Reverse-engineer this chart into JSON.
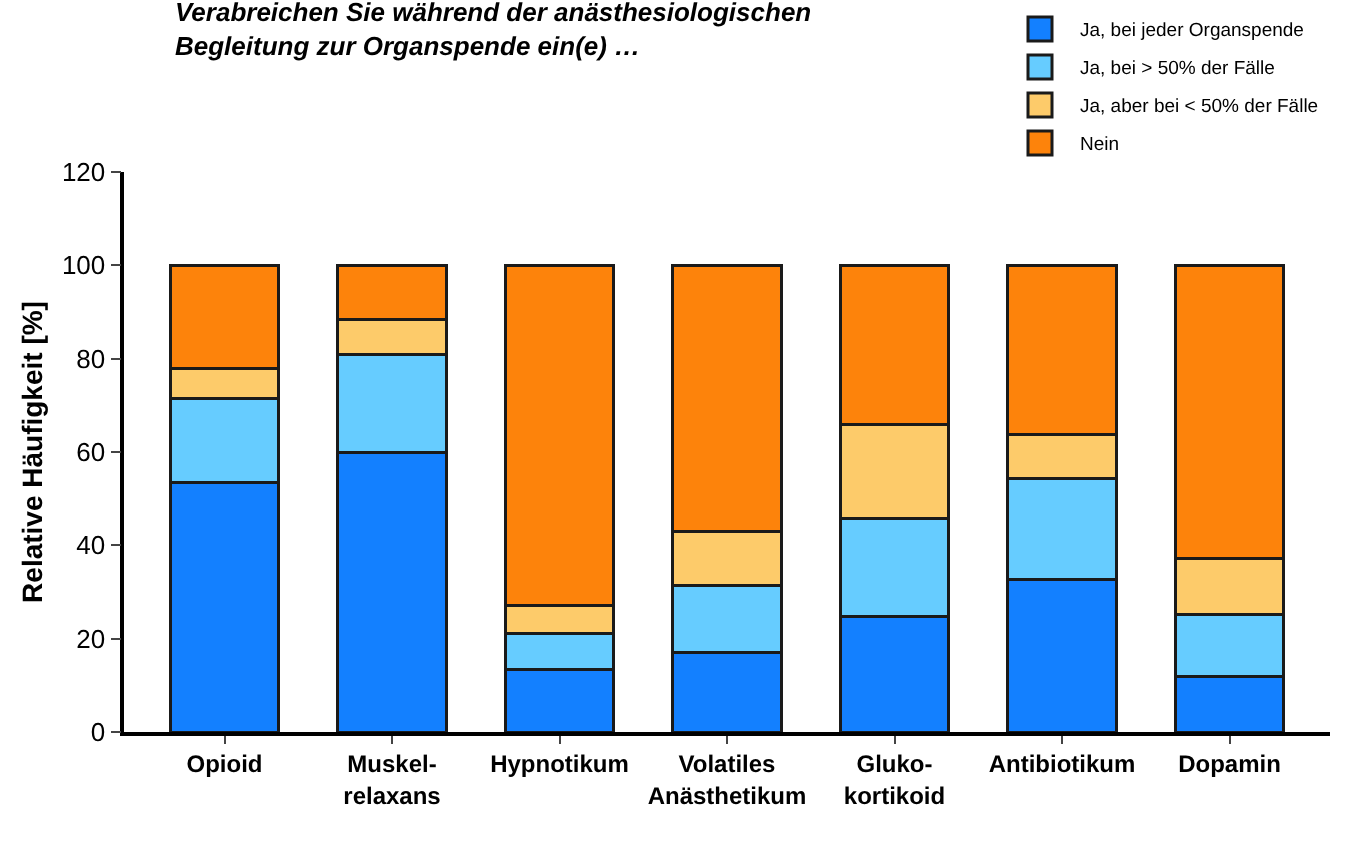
{
  "chart_data": {
    "type": "bar",
    "stacked": true,
    "title": "Verabreichen Sie während der anästhesiologischen\nBegleitung zur Organspende ein(e) …",
    "ylabel": "Relative Häufigkeit [%]",
    "categories": [
      "Opioid",
      "Muskel-\nrelaxans",
      "Hypnotikum",
      "Volatiles\nAnästhetikum",
      "Gluko-\nkortikoid",
      "Antibiotikum",
      "Dopamin"
    ],
    "series": [
      {
        "name": "Ja, bei jeder Organspende",
        "color": "#1380ff",
        "values": [
          53.5,
          60,
          13.3,
          17,
          24.7,
          32.7,
          12
        ]
      },
      {
        "name": "Ja, bei > 50% der Fälle",
        "color": "#66ccff",
        "values": [
          18,
          21,
          7.9,
          14.3,
          21.1,
          21.6,
          13.2
        ]
      },
      {
        "name": "Ja, aber bei < 50% der Fälle",
        "color": "#fdcb6a",
        "values": [
          6.5,
          7.5,
          6,
          11.7,
          20,
          9.5,
          12
        ]
      },
      {
        "name": "Nein",
        "color": "#fd830b",
        "values": [
          22,
          11.5,
          72.8,
          57,
          34.2,
          36.2,
          62.8
        ]
      }
    ],
    "ylim": [
      0,
      120
    ],
    "yticks": [
      0,
      20,
      40,
      60,
      80,
      100,
      120
    ],
    "grid": false,
    "legend": "top right"
  }
}
